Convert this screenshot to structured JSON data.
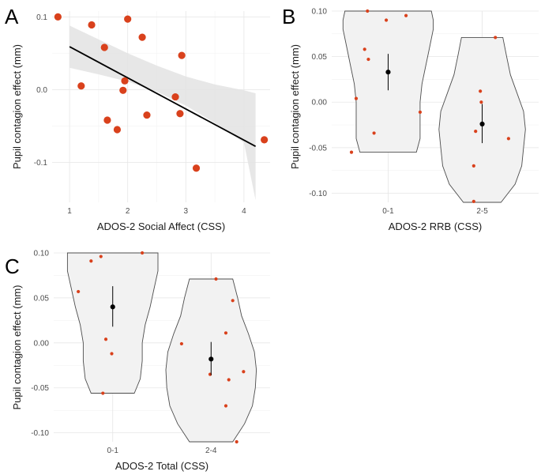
{
  "chart_data": [
    {
      "panel": "A",
      "type": "scatter",
      "xlabel": "ADOS-2 Social Affect (CSS)",
      "ylabel": "Pupil contagion effect (mm)",
      "xlim": [
        0.7,
        4.45
      ],
      "ylim": [
        -0.155,
        0.108
      ],
      "xticks": [
        1,
        2,
        3,
        4
      ],
      "yticks": [
        -0.1,
        0.0,
        0.1
      ],
      "ytick_labels": [
        "-0.1",
        "0.0",
        "0.1"
      ],
      "points": [
        {
          "x": 0.8,
          "y": 0.1
        },
        {
          "x": 1.2,
          "y": 0.005
        },
        {
          "x": 1.38,
          "y": 0.089
        },
        {
          "x": 1.6,
          "y": 0.058
        },
        {
          "x": 1.65,
          "y": -0.042
        },
        {
          "x": 1.82,
          "y": -0.055
        },
        {
          "x": 1.92,
          "y": -0.001
        },
        {
          "x": 1.95,
          "y": 0.012
        },
        {
          "x": 2.0,
          "y": 0.097
        },
        {
          "x": 2.25,
          "y": 0.072
        },
        {
          "x": 2.33,
          "y": -0.035
        },
        {
          "x": 2.82,
          "y": -0.01
        },
        {
          "x": 2.9,
          "y": -0.033
        },
        {
          "x": 2.93,
          "y": 0.047
        },
        {
          "x": 3.18,
          "y": -0.108
        },
        {
          "x": 4.35,
          "y": -0.069
        }
      ],
      "fit": {
        "x": [
          1.0,
          4.2
        ],
        "y": [
          0.059,
          -0.078
        ]
      },
      "band": {
        "x": [
          1.0,
          1.5,
          2.0,
          2.5,
          3.0,
          3.5,
          4.0,
          4.2
        ],
        "upper": [
          0.088,
          0.069,
          0.05,
          0.033,
          0.018,
          0.007,
          -0.001,
          -0.005
        ],
        "lower": [
          0.03,
          0.021,
          0.011,
          -0.003,
          -0.022,
          -0.046,
          -0.073,
          -0.152
        ]
      },
      "point_color": "#d9411c",
      "line_color": "#000000",
      "band_color": "#e3e3e3"
    },
    {
      "panel": "B",
      "type": "violin",
      "xlabel": "ADOS-2 RRB (CSS)",
      "ylabel": "Pupil contagion effect (mm)",
      "ylim": [
        -0.11,
        0.1
      ],
      "yticks": [
        -0.1,
        -0.05,
        0.0,
        0.05,
        0.1
      ],
      "ytick_labels": [
        "-0.10",
        "-0.05",
        "0.00",
        "0.05",
        "0.10"
      ],
      "categories": [
        "0-1",
        "2-5"
      ],
      "groups": [
        {
          "category": "0-1",
          "points": [
            {
              "dx": -0.22,
              "y": 0.1
            },
            {
              "dx": -0.02,
              "y": 0.09
            },
            {
              "dx": 0.19,
              "y": 0.095
            },
            {
              "dx": -0.25,
              "y": 0.058
            },
            {
              "dx": -0.21,
              "y": 0.047
            },
            {
              "dx": -0.34,
              "y": 0.004
            },
            {
              "dx": 0.34,
              "y": -0.011
            },
            {
              "dx": -0.15,
              "y": -0.034
            },
            {
              "dx": -0.39,
              "y": -0.055
            }
          ],
          "mean": 0.033,
          "ci": [
            0.013,
            0.053
          ],
          "violin": {
            "y": [
              -0.055,
              -0.04,
              -0.02,
              0.0,
              0.02,
              0.04,
              0.06,
              0.08,
              0.09,
              0.1
            ],
            "w": [
              0.3,
              0.34,
              0.34,
              0.34,
              0.36,
              0.4,
              0.44,
              0.48,
              0.48,
              0.46
            ]
          }
        },
        {
          "category": "2-5",
          "points": [
            {
              "dx": 0.14,
              "y": 0.071
            },
            {
              "dx": -0.02,
              "y": 0.012
            },
            {
              "dx": -0.01,
              "y": 0.0
            },
            {
              "dx": -0.07,
              "y": -0.032
            },
            {
              "dx": 0.28,
              "y": -0.04
            },
            {
              "dx": -0.09,
              "y": -0.07
            },
            {
              "dx": -0.09,
              "y": -0.109
            }
          ],
          "mean": -0.024,
          "ci": [
            -0.045,
            -0.002
          ],
          "violin": {
            "y": [
              -0.11,
              -0.09,
              -0.07,
              -0.05,
              -0.03,
              -0.01,
              0.01,
              0.03,
              0.05,
              0.071
            ],
            "w": [
              0.2,
              0.35,
              0.42,
              0.44,
              0.46,
              0.44,
              0.37,
              0.3,
              0.26,
              0.22
            ]
          }
        }
      ],
      "point_color": "#d9411c",
      "mean_color": "#000000",
      "violin_fill": "#f2f2f2",
      "violin_stroke": "#4d4d4d"
    },
    {
      "panel": "C",
      "type": "violin",
      "xlabel": "ADOS-2 Total (CSS)",
      "ylabel": "Pupil contagion effect (mm)",
      "ylim": [
        -0.11,
        0.1
      ],
      "yticks": [
        -0.1,
        -0.05,
        0.0,
        0.05,
        0.1
      ],
      "ytick_labels": [
        "-0.10",
        "-0.05",
        "0.00",
        "0.05",
        "0.10"
      ],
      "categories": [
        "0-1",
        "2-4"
      ],
      "groups": [
        {
          "category": "0-1",
          "points": [
            {
              "dx": 0.3,
              "y": 0.1
            },
            {
              "dx": -0.12,
              "y": 0.096
            },
            {
              "dx": -0.22,
              "y": 0.091
            },
            {
              "dx": -0.35,
              "y": 0.057
            },
            {
              "dx": -0.07,
              "y": 0.004
            },
            {
              "dx": -0.01,
              "y": -0.012
            },
            {
              "dx": -0.1,
              "y": -0.056
            }
          ],
          "mean": 0.04,
          "ci": [
            0.018,
            0.063
          ],
          "violin": {
            "y": [
              -0.056,
              -0.04,
              -0.02,
              0.0,
              0.02,
              0.04,
              0.06,
              0.08,
              0.09,
              0.1
            ],
            "w": [
              0.22,
              0.28,
              0.3,
              0.3,
              0.33,
              0.38,
              0.42,
              0.46,
              0.46,
              0.46
            ]
          }
        },
        {
          "category": "2-4",
          "points": [
            {
              "dx": 0.05,
              "y": 0.071
            },
            {
              "dx": 0.22,
              "y": 0.047
            },
            {
              "dx": 0.15,
              "y": 0.011
            },
            {
              "dx": -0.3,
              "y": -0.001
            },
            {
              "dx": 0.33,
              "y": -0.032
            },
            {
              "dx": -0.01,
              "y": -0.035
            },
            {
              "dx": 0.18,
              "y": -0.041
            },
            {
              "dx": 0.15,
              "y": -0.07
            },
            {
              "dx": 0.26,
              "y": -0.11
            }
          ],
          "mean": -0.018,
          "ci": [
            -0.036,
            0.001
          ],
          "violin": {
            "y": [
              -0.11,
              -0.09,
              -0.07,
              -0.05,
              -0.03,
              -0.01,
              0.01,
              0.03,
              0.05,
              0.071
            ],
            "w": [
              0.22,
              0.34,
              0.42,
              0.45,
              0.46,
              0.44,
              0.38,
              0.31,
              0.27,
              0.22
            ]
          }
        }
      ],
      "point_color": "#d9411c",
      "mean_color": "#000000",
      "violin_fill": "#f2f2f2",
      "violin_stroke": "#4d4d4d"
    }
  ]
}
